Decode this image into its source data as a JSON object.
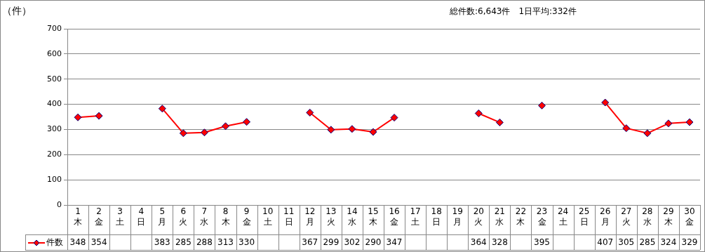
{
  "chart_data": {
    "type": "line",
    "ylabel": "（件）",
    "subtitle": "総件数:6,643件　1日平均:332件",
    "categories": [
      "1\n木",
      "2\n金",
      "3\n土",
      "4\n日",
      "5\n月",
      "6\n火",
      "7\n水",
      "8\n木",
      "9\n金",
      "10\n土",
      "11\n日",
      "12\n月",
      "13\n火",
      "14\n水",
      "15\n木",
      "16\n金",
      "17\n土",
      "18\n日",
      "19\n月",
      "20\n火",
      "21\n水",
      "22\n木",
      "23\n金",
      "24\n土",
      "25\n日",
      "26\n月",
      "27\n火",
      "28\n水",
      "29\n木",
      "30\n金"
    ],
    "series": [
      {
        "name": "件数",
        "color": "#ff0000",
        "values": [
          348,
          354,
          null,
          null,
          383,
          285,
          288,
          313,
          330,
          null,
          null,
          367,
          299,
          302,
          290,
          347,
          null,
          null,
          null,
          364,
          328,
          null,
          395,
          null,
          null,
          407,
          305,
          285,
          324,
          329
        ]
      }
    ],
    "ylim": [
      0,
      700
    ],
    "yticks": [
      0,
      100,
      200,
      300,
      400,
      500,
      600,
      700
    ],
    "grid": "y",
    "marker": "diamond",
    "line_style": "solid",
    "data_labels": true,
    "legend": "bottom left"
  }
}
